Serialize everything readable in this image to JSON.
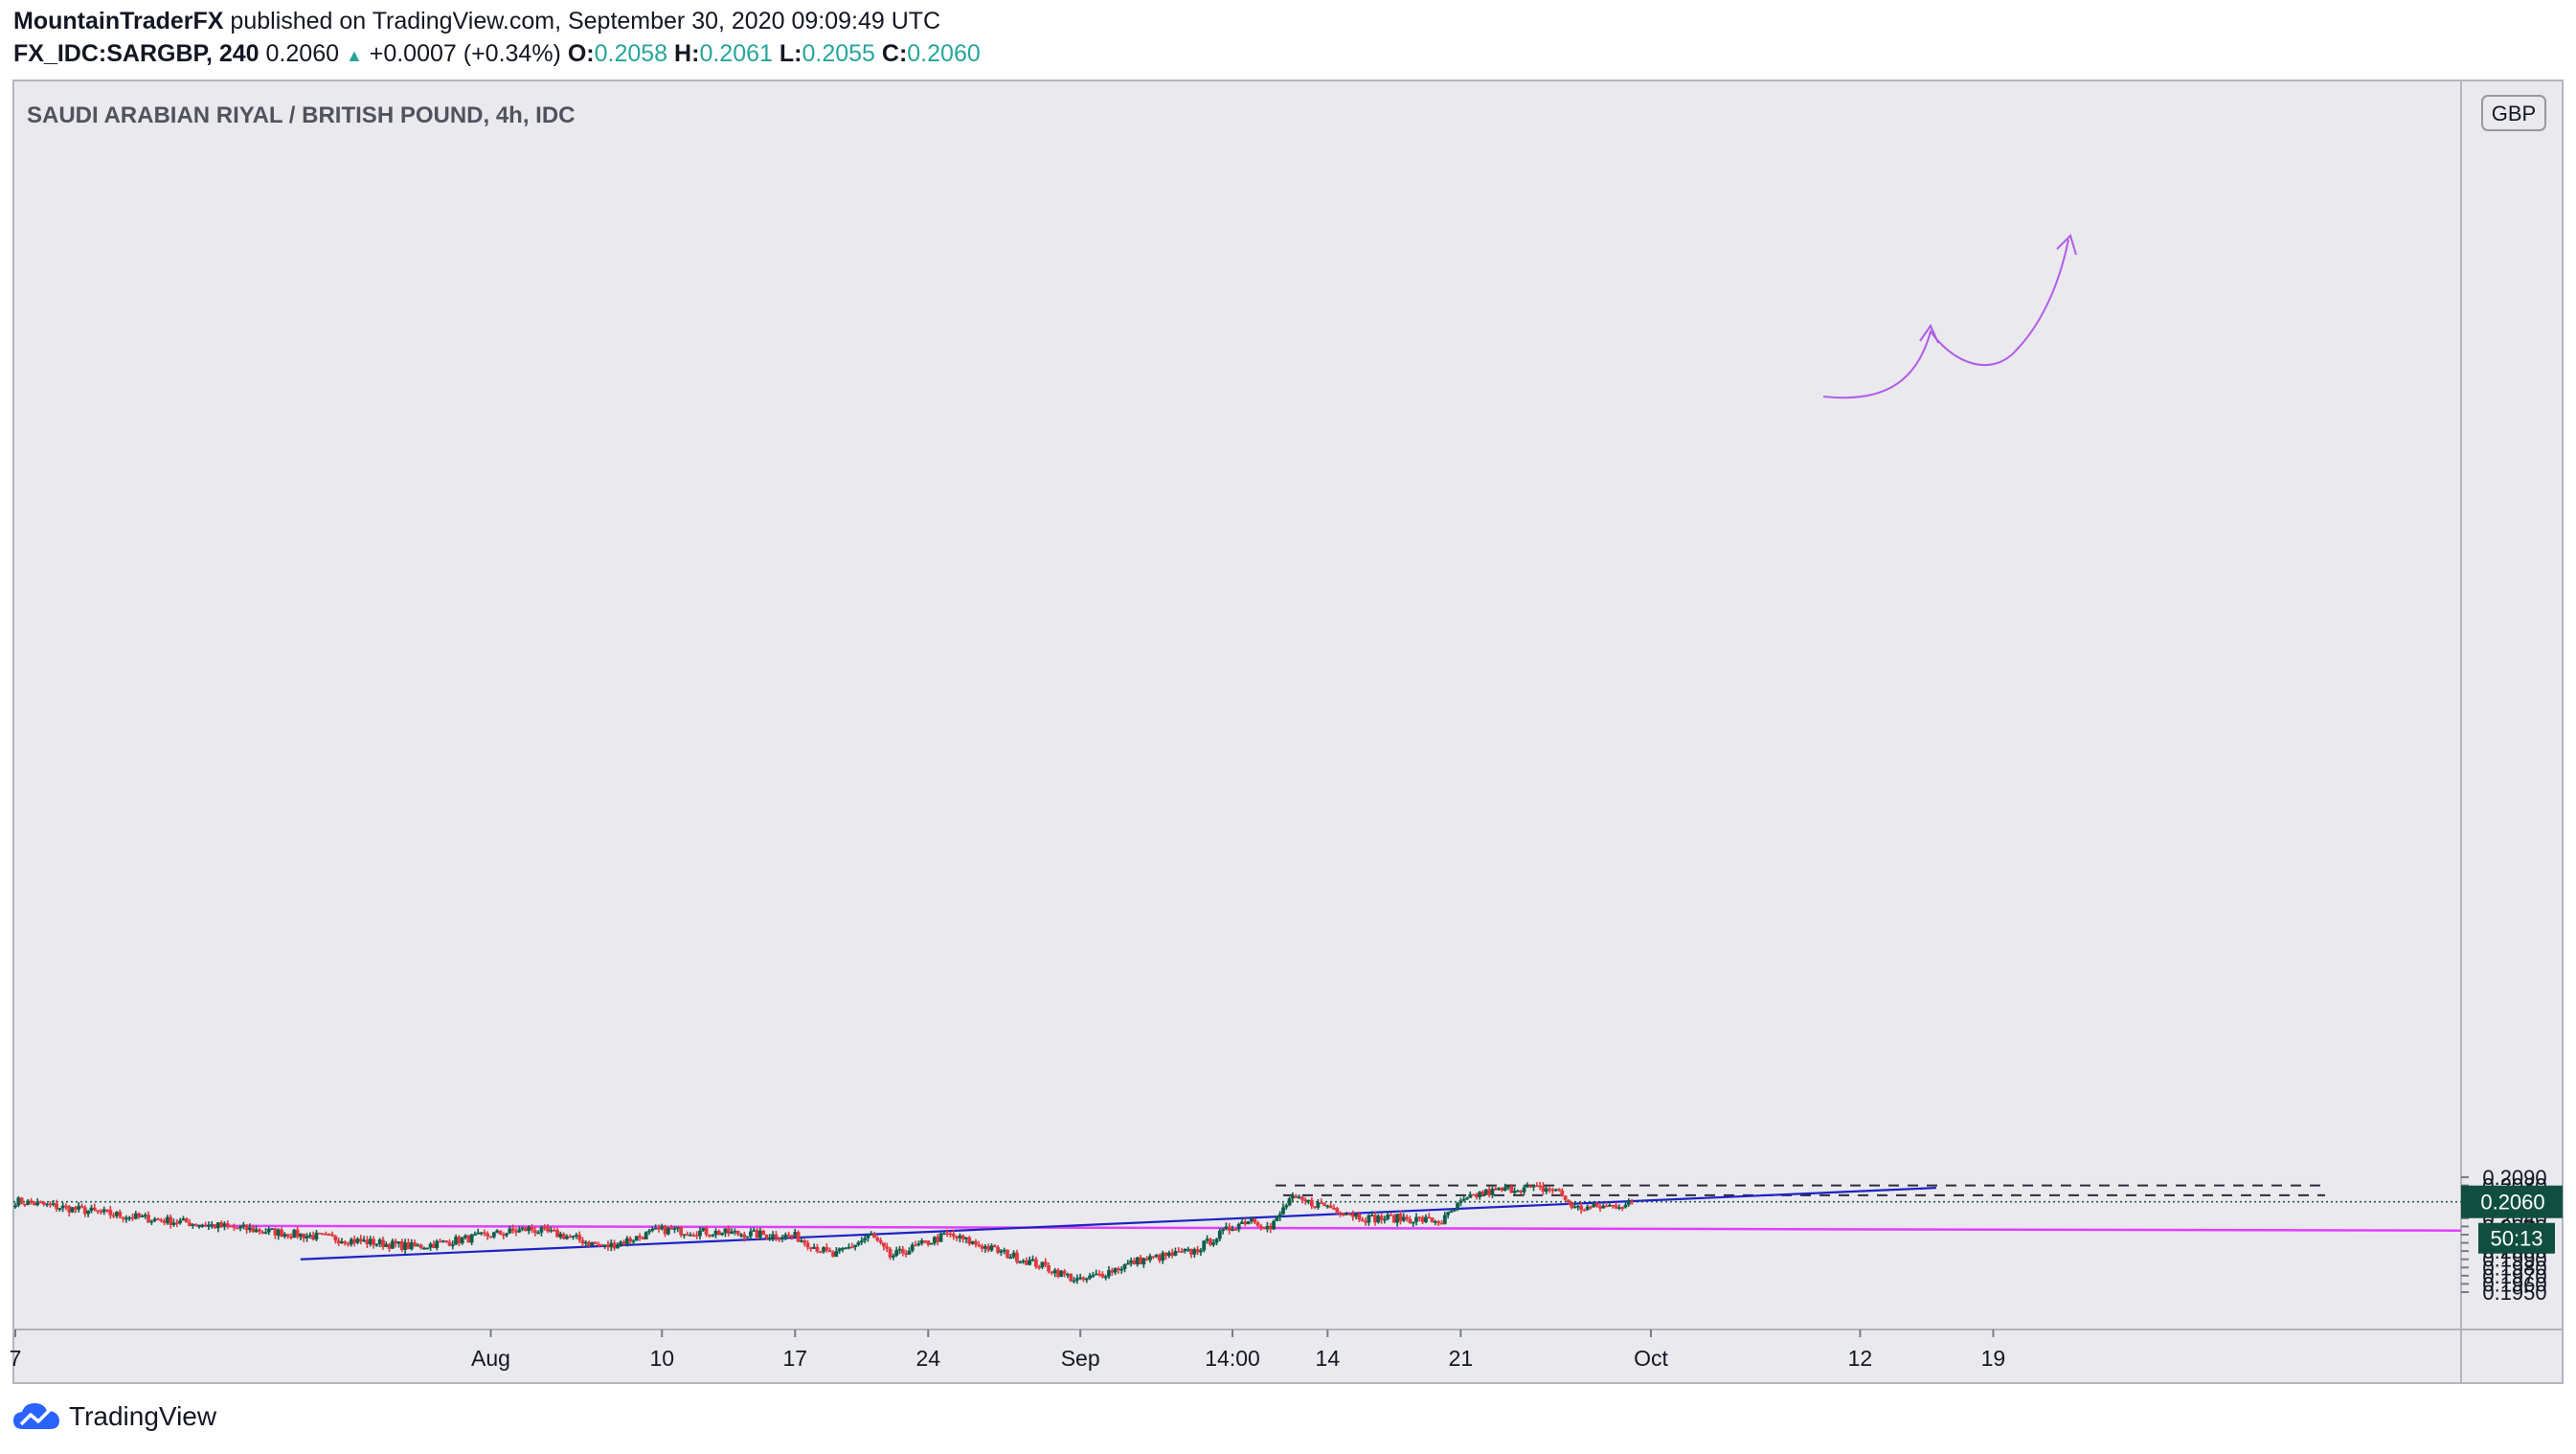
{
  "header": {
    "author": "MountainTraderFX",
    "published_text": "published on TradingView.com, September 30, 2020 09:09:49 UTC",
    "symbol": "FX_IDC:SARGBP, 240",
    "last": "0.2060",
    "change": "+0.0007 (+0.34%)",
    "open_label": "O:",
    "open": "0.2058",
    "high_label": "H:",
    "high": "0.2061",
    "low_label": "L:",
    "low": "0.2055",
    "close_label": "C:",
    "close": "0.2060"
  },
  "footer": {
    "brand": "TradingView"
  },
  "chart_data": {
    "type": "candlestick",
    "title": "SAUDI ARABIAN RIYAL / BRITISH POUND, 4h, IDC",
    "currency": "GBP",
    "y_range": [
      0.1946,
      0.2094
    ],
    "y_ticks": [
      "0.2090",
      "0.2080",
      "0.2070",
      "0.2060",
      "0.2050",
      "0.2040",
      "0.2030",
      "0.2020",
      "0.2010",
      "0.2000",
      "0.1990",
      "0.1980",
      "0.1970",
      "0.1960",
      "0.1950"
    ],
    "x_ticks": [
      "7",
      "Aug",
      "10",
      "17",
      "24",
      "Sep",
      "14:00",
      "14",
      "21",
      "Oct",
      "12",
      "19"
    ],
    "last_price_label": "0.2060",
    "countdown_label": "50:13",
    "colors": {
      "up": "#0f5e4b",
      "down": "#e0393e",
      "support_line": "#e040fb",
      "trend_line": "#1e22c4",
      "projection": "#b05ce8"
    },
    "horizontal_support": 0.20285,
    "resistance_levels": [
      0.2068,
      0.208
    ],
    "trendline": {
      "from": [
        "Jul 22",
        0.199
      ],
      "to": [
        "Oct 16",
        0.2077
      ]
    },
    "anchors": [
      {
        "date": "Jul 7",
        "close": 0.2061
      },
      {
        "date": "Jul 13",
        "close": 0.2042
      },
      {
        "date": "Jul 28",
        "close": 0.2005
      },
      {
        "date": "Aug 3",
        "close": 0.2027
      },
      {
        "date": "Aug 5",
        "close": 0.2018
      },
      {
        "date": "Aug 7",
        "close": 0.2005
      },
      {
        "date": "Aug 10",
        "close": 0.2026
      },
      {
        "date": "Aug 17",
        "close": 0.2018
      },
      {
        "date": "Aug 19",
        "close": 0.1994
      },
      {
        "date": "Aug 21",
        "close": 0.2019
      },
      {
        "date": "Aug 22",
        "close": 0.1993
      },
      {
        "date": "Aug 25",
        "close": 0.202
      },
      {
        "date": "Aug 27",
        "close": 0.2005
      },
      {
        "date": "Aug 30",
        "close": 0.1982
      },
      {
        "date": "Sep 1",
        "close": 0.1963
      },
      {
        "date": "Sep 4",
        "close": 0.1988
      },
      {
        "date": "Sep 7",
        "close": 0.2
      },
      {
        "date": "Sep 9",
        "close": 0.203
      },
      {
        "date": "Sep 10",
        "close": 0.204
      },
      {
        "date": "Sep 11",
        "close": 0.2027
      },
      {
        "date": "Sep 12",
        "close": 0.2063
      },
      {
        "date": "Sep 14",
        "close": 0.2055
      },
      {
        "date": "Sep 16",
        "close": 0.204
      },
      {
        "date": "Sep 18",
        "close": 0.204
      },
      {
        "date": "Sep 20",
        "close": 0.2036
      },
      {
        "date": "Sep 21",
        "close": 0.2058
      },
      {
        "date": "Sep 22",
        "close": 0.207
      },
      {
        "date": "Sep 24",
        "close": 0.2077
      },
      {
        "date": "Sep 26",
        "close": 0.2075
      },
      {
        "date": "Sep 27",
        "close": 0.2052
      },
      {
        "date": "Sep 29",
        "close": 0.2055
      },
      {
        "date": "Sep 30",
        "close": 0.206
      }
    ]
  }
}
